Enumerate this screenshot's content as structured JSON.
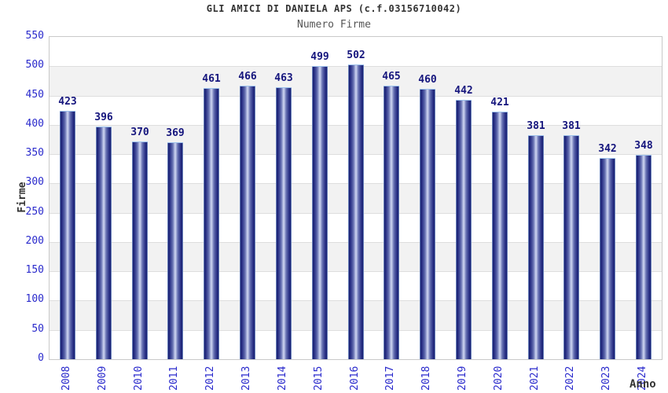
{
  "header": {
    "title": "GLI AMICI DI DANIELA APS (c.f.03156710042)",
    "subtitle": "Numero Firme"
  },
  "chart_data": {
    "type": "bar",
    "title": "GLI AMICI DI DANIELA APS (c.f.03156710042)",
    "subtitle": "Numero Firme",
    "categories": [
      "2008",
      "2009",
      "2010",
      "2011",
      "2012",
      "2013",
      "2014",
      "2015",
      "2016",
      "2017",
      "2018",
      "2019",
      "2020",
      "2021",
      "2022",
      "2023",
      "2024"
    ],
    "values": [
      423,
      396,
      370,
      369,
      461,
      466,
      463,
      499,
      502,
      465,
      460,
      442,
      421,
      381,
      381,
      342,
      348
    ],
    "xlabel": "Anno",
    "ylabel": "Firme",
    "ylim": [
      0,
      550
    ],
    "ytick_step": 50,
    "y_ticks": [
      0,
      50,
      100,
      150,
      200,
      250,
      300,
      350,
      400,
      450,
      500,
      550
    ],
    "grid": true,
    "legend_position": "none",
    "value_labels_shown": true,
    "colors": {
      "tick_text": "#2929cc",
      "value_text": "#15157d",
      "axis_title_text": "#333333",
      "title_text": "#333333",
      "subtitle_text": "#555555",
      "band_gray": "#f2f2f2",
      "band_white": "#ffffff",
      "grid_line": "#dedede",
      "plot_border": "#c9c9c9",
      "bar_edge": "#9ec2ec",
      "bar_dark": "#1b2272",
      "bar_mid": "#6670b2",
      "bar_highlight": "#c3cbeb"
    }
  }
}
